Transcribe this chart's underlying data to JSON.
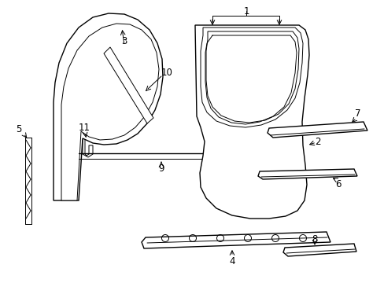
{
  "background": "#ffffff",
  "line_color": "#000000",
  "fig_width": 4.89,
  "fig_height": 3.6,
  "dpi": 100,
  "label_fontsize": 8.5
}
